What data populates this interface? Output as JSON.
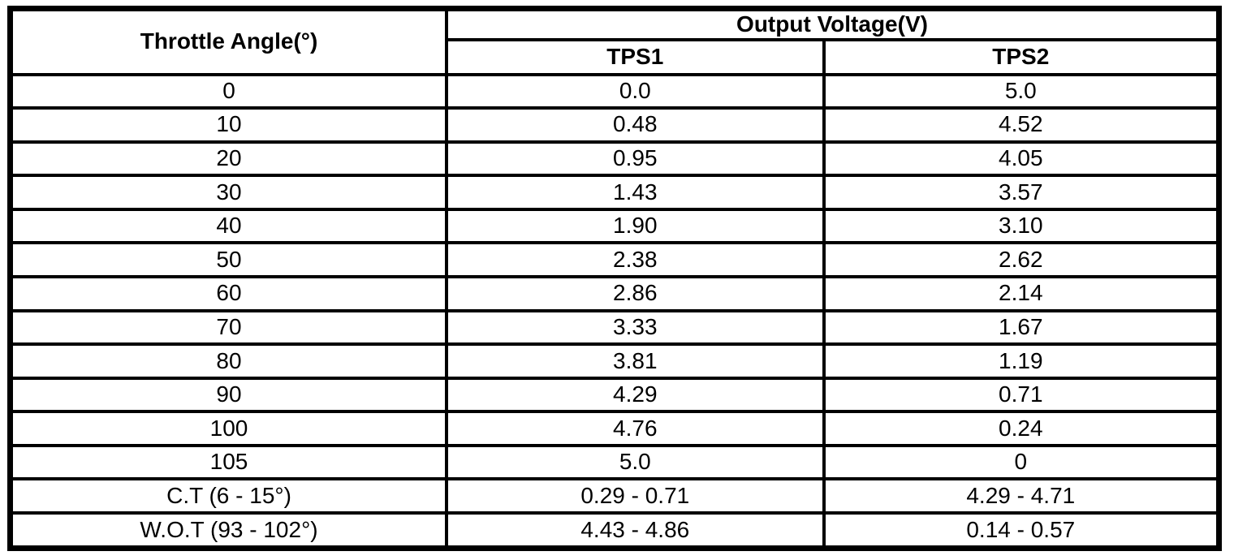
{
  "page": {
    "background_color": "#ffffff"
  },
  "table": {
    "border_color": "#000000",
    "text_color": "#000000",
    "headers": {
      "angle": "Throttle Angle(°)",
      "group": "Output Voltage(V)",
      "sub": [
        "TPS1",
        "TPS2"
      ]
    },
    "rows": [
      [
        "0",
        "0.0",
        "5.0"
      ],
      [
        "10",
        "0.48",
        "4.52"
      ],
      [
        "20",
        "0.95",
        "4.05"
      ],
      [
        "30",
        "1.43",
        "3.57"
      ],
      [
        "40",
        "1.90",
        "3.10"
      ],
      [
        "50",
        "2.38",
        "2.62"
      ],
      [
        "60",
        "2.86",
        "2.14"
      ],
      [
        "70",
        "3.33",
        "1.67"
      ],
      [
        "80",
        "3.81",
        "1.19"
      ],
      [
        "90",
        "4.29",
        "0.71"
      ],
      [
        "100",
        "4.76",
        "0.24"
      ],
      [
        "105",
        "5.0",
        "0"
      ],
      [
        "C.T (6 - 15°)",
        "0.29 - 0.71",
        "4.29 - 4.71"
      ],
      [
        "W.O.T (93 - 102°)",
        "4.43 - 4.86",
        "0.14 - 0.57"
      ]
    ]
  }
}
